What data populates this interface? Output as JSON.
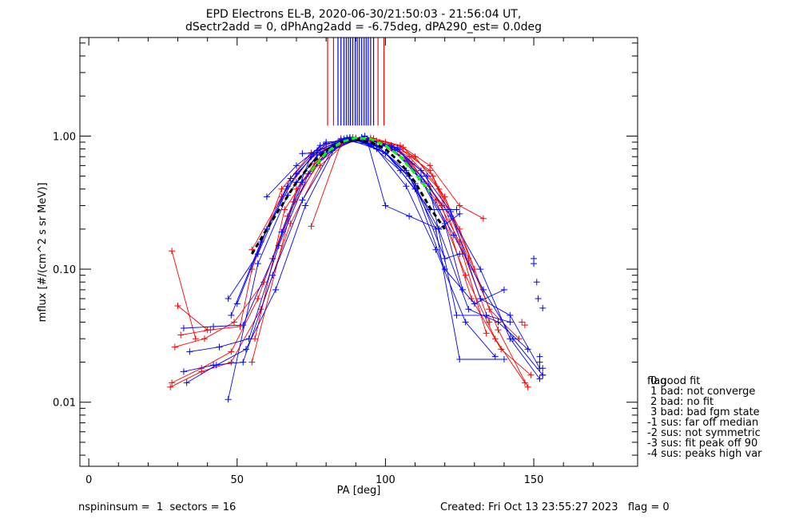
{
  "chart_data": {
    "type": "line",
    "title_line1": "EPD Electrons EL-B, 2020-06-30/21:50:03 - 21:56:04 UT,",
    "title_line2": "dSectr2add = 0, dPhAng2add = -6.75deg, dPA290_est=   0.0deg",
    "xlabel": "PA [deg]",
    "ylabel": "mflux [#/(cm^2 s sr MeV)]",
    "xlim": [
      -3,
      185
    ],
    "ylim": [
      0.0033,
      5.5
    ],
    "yscale": "log",
    "xticks": [
      0,
      50,
      100,
      150
    ],
    "xtick_labels": [
      "0",
      "50",
      "100",
      "150"
    ],
    "yticks": [
      0.01,
      0.1,
      1.0
    ],
    "ytick_labels": [
      "0.01",
      "0.10",
      "1.00"
    ],
    "grid": false,
    "series_colors": {
      "red": "#ff0000",
      "blue": "#0000ff",
      "green": "#00ff00",
      "black": "#000000"
    },
    "vertical_markers": [
      {
        "color": "red",
        "x": [
          80.5,
          82.5,
          97.5,
          99.5
        ]
      },
      {
        "color": "blue",
        "x": [
          84,
          85,
          86,
          86.8,
          87.5,
          88.2,
          89,
          89.8,
          90.5,
          91.2,
          92,
          92.8,
          93.5,
          94.2,
          95,
          96
        ]
      }
    ],
    "red_curves": [
      {
        "x": [
          27.5,
          38,
          48,
          58,
          68,
          78,
          88,
          98,
          108,
          118,
          128,
          138,
          148
        ],
        "y": [
          0.013,
          0.017,
          0.02,
          0.05,
          0.22,
          0.6,
          0.95,
          0.9,
          0.7,
          0.4,
          0.12,
          0.035,
          0.013
        ]
      },
      {
        "x": [
          28,
          38,
          48,
          57,
          67,
          77,
          87,
          97,
          107,
          117,
          127,
          137,
          147
        ],
        "y": [
          0.014,
          0.018,
          0.024,
          0.06,
          0.25,
          0.62,
          0.92,
          0.92,
          0.65,
          0.33,
          0.09,
          0.03,
          0.014
        ]
      },
      {
        "x": [
          29,
          39,
          49,
          59,
          69,
          79,
          89,
          99,
          109,
          119,
          129,
          139,
          149
        ],
        "y": [
          0.026,
          0.03,
          0.04,
          0.08,
          0.32,
          0.7,
          0.98,
          0.88,
          0.62,
          0.3,
          0.06,
          0.025,
          0.016
        ]
      },
      {
        "x": [
          31,
          41,
          51,
          55,
          65,
          75,
          85,
          95,
          105,
          115,
          125,
          135,
          145
        ],
        "y": [
          0.032,
          0.035,
          0.037,
          0.1,
          0.4,
          0.75,
          0.96,
          0.95,
          0.8,
          0.55,
          0.2,
          0.05,
          0.03
        ]
      },
      {
        "x": [
          55,
          65,
          75,
          85,
          95,
          105,
          115,
          125,
          133
        ],
        "y": [
          0.14,
          0.35,
          0.7,
          0.92,
          0.97,
          0.85,
          0.6,
          0.3,
          0.24
        ]
      },
      {
        "x": [
          56,
          66,
          76,
          86,
          96,
          106,
          116,
          126,
          134
        ],
        "y": [
          0.03,
          0.28,
          0.62,
          0.9,
          0.96,
          0.82,
          0.5,
          0.13,
          0.033
        ]
      },
      {
        "x": [
          55,
          70,
          80,
          90,
          100,
          110,
          120,
          130
        ],
        "y": [
          0.02,
          0.4,
          0.8,
          0.97,
          0.9,
          0.7,
          0.35,
          0.1
        ]
      },
      {
        "x": [
          75,
          85,
          95,
          105,
          115,
          125,
          135
        ],
        "y": [
          0.21,
          0.88,
          0.94,
          0.76,
          0.42,
          0.16,
          0.04
        ]
      },
      {
        "x": [
          30,
          40
        ],
        "y": [
          0.053,
          0.035
        ]
      },
      {
        "x": [
          28,
          36
        ],
        "y": [
          0.137,
          0.03
        ]
      }
    ],
    "blue_curves": [
      {
        "x": [
          32,
          42,
          52,
          62,
          72,
          82,
          92,
          102,
          112,
          122,
          132,
          142,
          152
        ],
        "y": [
          0.017,
          0.019,
          0.02,
          0.09,
          0.33,
          0.78,
          0.98,
          0.82,
          0.5,
          0.25,
          0.1,
          0.03,
          0.015
        ]
      },
      {
        "x": [
          33,
          43,
          53,
          63,
          73,
          83,
          93,
          103,
          113,
          123,
          133,
          143,
          153
        ],
        "y": [
          0.014,
          0.019,
          0.025,
          0.07,
          0.3,
          0.82,
          1.0,
          0.78,
          0.44,
          0.18,
          0.07,
          0.03,
          0.016
        ]
      },
      {
        "x": [
          32,
          42,
          52,
          62,
          72,
          82,
          92,
          102,
          112,
          122,
          132,
          142,
          152
        ],
        "y": [
          0.036,
          0.037,
          0.038,
          0.12,
          0.45,
          0.85,
          0.97,
          0.85,
          0.55,
          0.27,
          0.06,
          0.045,
          0.018
        ]
      },
      {
        "x": [
          34,
          44,
          54,
          64,
          74,
          84,
          94,
          104,
          114,
          124,
          134,
          142
        ],
        "y": [
          0.024,
          0.026,
          0.03,
          0.15,
          0.52,
          0.88,
          0.95,
          0.8,
          0.5,
          0.045,
          0.045,
          0.04
        ]
      },
      {
        "x": [
          47,
          57,
          67,
          77,
          87,
          97,
          107,
          117,
          125,
          140
        ],
        "y": [
          0.0105,
          0.11,
          0.36,
          0.72,
          0.97,
          0.85,
          0.55,
          0.2,
          0.021,
          0.021
        ]
      },
      {
        "x": [
          47,
          57,
          67,
          77,
          87,
          97,
          107,
          117,
          127,
          137
        ],
        "y": [
          0.06,
          0.13,
          0.42,
          0.78,
          0.95,
          0.8,
          0.42,
          0.14,
          0.04,
          0.022
        ]
      },
      {
        "x": [
          48,
          58,
          68,
          78,
          88,
          98,
          108,
          118,
          128,
          138,
          148
        ],
        "y": [
          0.045,
          0.16,
          0.48,
          0.85,
          0.96,
          0.82,
          0.5,
          0.2,
          0.05,
          0.04,
          0.025
        ]
      },
      {
        "x": [
          50,
          60,
          70,
          80,
          90,
          100,
          110,
          120,
          130,
          140
        ],
        "y": [
          0.055,
          0.2,
          0.52,
          0.88,
          0.95,
          0.75,
          0.4,
          0.1,
          0.055,
          0.07
        ]
      },
      {
        "x": [
          65,
          75,
          85,
          95,
          105,
          115,
          124
        ],
        "y": [
          0.19,
          0.72,
          0.94,
          0.86,
          0.55,
          0.28,
          0.28
        ]
      },
      {
        "x": [
          70,
          78,
          86,
          94,
          100,
          108,
          118,
          125
        ],
        "y": [
          0.45,
          0.75,
          0.95,
          0.9,
          0.3,
          0.25,
          0.2,
          0.26
        ]
      },
      {
        "x": [
          72,
          80,
          88,
          96,
          104,
          112,
          120,
          126
        ],
        "y": [
          0.74,
          0.75,
          0.98,
          0.86,
          0.82,
          0.47,
          0.22,
          0.07
        ]
      },
      {
        "x": [
          60,
          70,
          80,
          90,
          100,
          110,
          120,
          125
        ],
        "y": [
          0.35,
          0.6,
          0.9,
          0.94,
          0.74,
          0.44,
          0.12,
          0.13
        ]
      }
    ],
    "black_dashed_curves": [
      {
        "x": [
          55,
          60,
          65,
          70,
          75,
          80,
          85,
          90,
          95,
          100,
          105,
          110,
          115,
          120
        ],
        "y": [
          0.13,
          0.2,
          0.3,
          0.45,
          0.62,
          0.78,
          0.9,
          0.94,
          0.9,
          0.8,
          0.63,
          0.45,
          0.29,
          0.2
        ]
      }
    ],
    "green_dashed_curves": [
      {
        "x": [
          75,
          80,
          85,
          90,
          95,
          100,
          105,
          110,
          115
        ],
        "y": [
          0.55,
          0.75,
          0.9,
          0.97,
          0.95,
          0.85,
          0.7,
          0.52,
          0.38
        ]
      }
    ],
    "blue_isolated_points": {
      "x": [
        150,
        150,
        151,
        151.5,
        152,
        152,
        153,
        153,
        153
      ],
      "y": [
        0.12,
        0.11,
        0.08,
        0.06,
        0.022,
        0.02,
        0.018,
        0.016,
        0.051
      ]
    },
    "red_isolated_points": {
      "x": [
        146,
        147
      ],
      "y": [
        0.04,
        0.038
      ]
    }
  },
  "legend": {
    "title": "flag",
    "entries": [
      " 0 good fit",
      " 1 bad: not converge",
      " 2 bad: no fit",
      " 3 bad: bad fgm state",
      "-1 sus: far off median",
      "-2 sus: not symmetric",
      "-3 sus: fit peak off 90",
      "-4 sus: peaks high var"
    ]
  },
  "footer": {
    "left": "nspininsum =  1  sectors = 16",
    "right": "Created: Fri Oct 13 23:55:27 2023   flag = 0"
  }
}
